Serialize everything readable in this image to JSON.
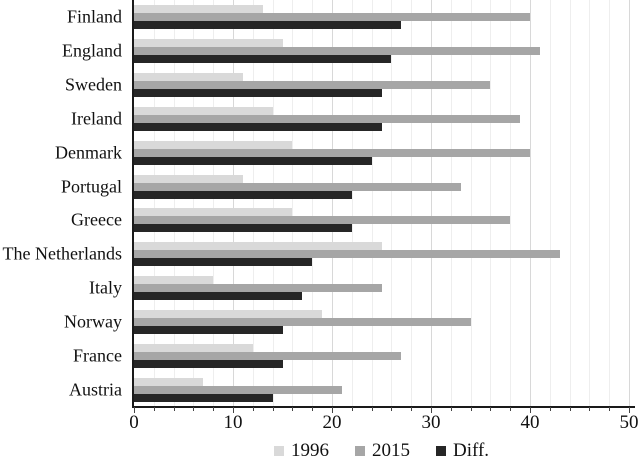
{
  "chart_data": {
    "type": "bar",
    "orientation": "horizontal",
    "title": "",
    "xlabel": "",
    "ylabel": "",
    "categories": [
      "Finland",
      "England",
      "Sweden",
      "Ireland",
      "Denmark",
      "Portugal",
      "Greece",
      "The Netherlands",
      "Italy",
      "Norway",
      "France",
      "Austria"
    ],
    "series": [
      {
        "name": "1996",
        "color": "#d9d9d9",
        "values": [
          13,
          15,
          11,
          14,
          16,
          11,
          16,
          25,
          8,
          19,
          12,
          7
        ]
      },
      {
        "name": "2015",
        "color": "#a6a6a6",
        "values": [
          40,
          41,
          36,
          39,
          40,
          33,
          38,
          43,
          25,
          34,
          27,
          21
        ]
      },
      {
        "name": "Diff.",
        "color": "#262626",
        "values": [
          27,
          26,
          25,
          25,
          24,
          22,
          22,
          18,
          17,
          15,
          15,
          14
        ]
      }
    ],
    "xlim": [
      0,
      50
    ],
    "x_ticks": [
      0,
      10,
      20,
      30,
      40,
      50
    ],
    "minor_grid_step": 2,
    "major_grid_step": 10,
    "grid": true,
    "legend_position": "bottom"
  },
  "colors": {
    "background": "#ffffff",
    "axis": "#1a1a1a",
    "text": "#111111",
    "minor_gridline": "#eeeeee",
    "major_gridline": "#d8d8d8"
  }
}
